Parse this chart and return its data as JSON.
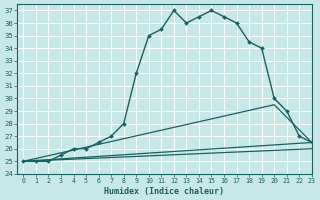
{
  "xlabel": "Humidex (Indice chaleur)",
  "background_color": "#c8e8e8",
  "grid_color": "#ffffff",
  "line_color": "#1a6060",
  "xlim": [
    -0.5,
    23
  ],
  "ylim": [
    24,
    37.5
  ],
  "xticks": [
    0,
    1,
    2,
    3,
    4,
    5,
    6,
    7,
    8,
    9,
    10,
    11,
    12,
    13,
    14,
    15,
    16,
    17,
    18,
    19,
    20,
    21,
    22,
    23
  ],
  "yticks": [
    24,
    25,
    26,
    27,
    28,
    29,
    30,
    31,
    32,
    33,
    34,
    35,
    36,
    37
  ],
  "main_curve": {
    "x": [
      0,
      1,
      2,
      3,
      4,
      5,
      6,
      7,
      8,
      9,
      10,
      11,
      12,
      13,
      14,
      15,
      16,
      17,
      18,
      19,
      20,
      21,
      22,
      23
    ],
    "y": [
      25,
      25,
      25,
      25.5,
      26,
      26,
      26.5,
      27,
      28,
      32,
      35,
      35.5,
      37,
      36,
      36.5,
      37,
      36.5,
      36,
      34.5,
      34,
      30,
      29,
      27,
      26.5
    ]
  },
  "flat_lines": [
    {
      "x": [
        0,
        23
      ],
      "y": [
        25,
        26.5
      ]
    },
    {
      "x": [
        0,
        23
      ],
      "y": [
        25,
        26.0
      ]
    },
    {
      "x": [
        0,
        20,
        23
      ],
      "y": [
        25,
        29.5,
        26.5
      ]
    }
  ]
}
